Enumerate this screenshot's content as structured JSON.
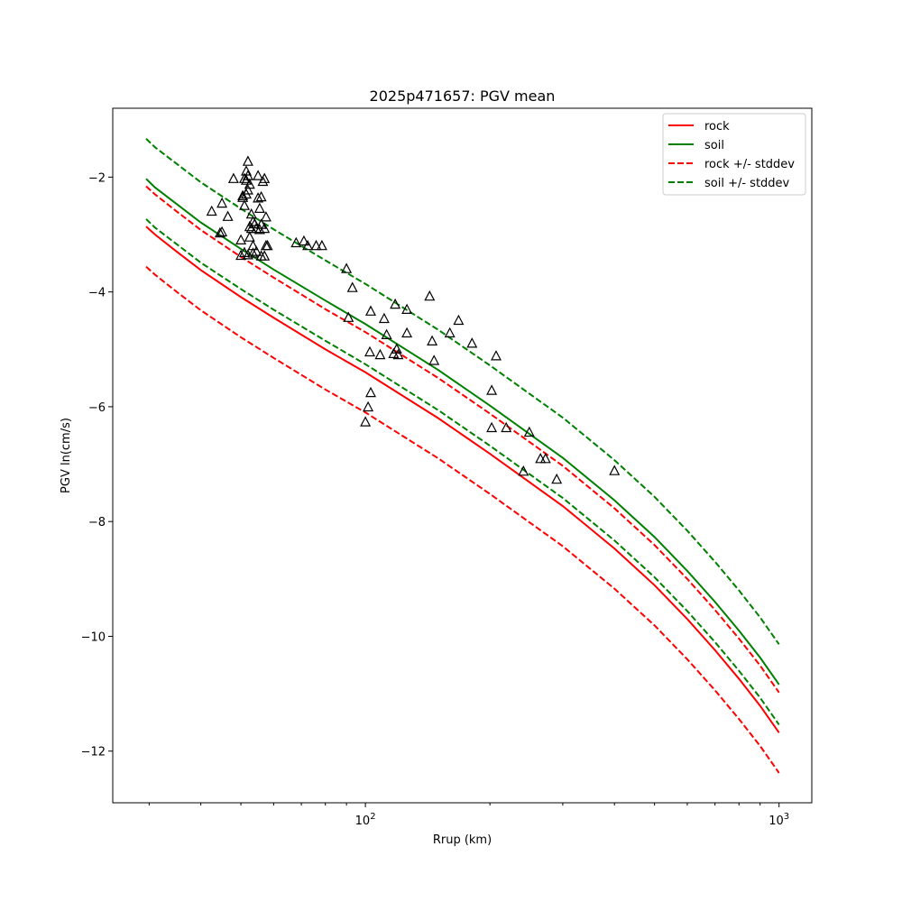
{
  "chart_data": {
    "type": "line",
    "title": "2025p471657: PGV mean",
    "xlabel": "Rrup (km)",
    "ylabel": "PGV ln(cm/s)",
    "xscale": "log",
    "xlim": [
      24.5,
      1200
    ],
    "ylim": [
      -12.9,
      -0.8
    ],
    "xticks": [
      {
        "value": 100,
        "label": "10^2"
      },
      {
        "value": 1000,
        "label": "10^3"
      }
    ],
    "yticks": [
      -2,
      -4,
      -6,
      -8,
      -10,
      -12
    ],
    "grid": false,
    "legend_position": "top-right",
    "colors": {
      "rock": "#ff0000",
      "soil": "#008000",
      "points": "#000000"
    },
    "series": [
      {
        "name": "rock",
        "style": "solid",
        "color": "#ff0000",
        "x": [
          29.5,
          31,
          35,
          40,
          50,
          60,
          80,
          100,
          150,
          200,
          300,
          400,
          500,
          600,
          700,
          800,
          900,
          1000
        ],
        "y": [
          -2.86,
          -3.0,
          -3.3,
          -3.62,
          -4.09,
          -4.45,
          -5.0,
          -5.4,
          -6.2,
          -6.82,
          -7.73,
          -8.47,
          -9.11,
          -9.7,
          -10.24,
          -10.74,
          -11.21,
          -11.68
        ]
      },
      {
        "name": "soil",
        "style": "solid",
        "color": "#008000",
        "x": [
          29.5,
          31,
          35,
          40,
          50,
          60,
          80,
          100,
          150,
          200,
          300,
          400,
          500,
          600,
          700,
          800,
          900,
          1000
        ],
        "y": [
          -2.03,
          -2.18,
          -2.47,
          -2.79,
          -3.25,
          -3.61,
          -4.15,
          -4.56,
          -5.36,
          -5.98,
          -6.89,
          -7.63,
          -8.27,
          -8.86,
          -9.4,
          -9.9,
          -10.37,
          -10.84
        ]
      },
      {
        "name": "rock +/- stddev",
        "style": "dashed",
        "color": "#ff0000",
        "x": [
          29.5,
          31,
          35,
          40,
          50,
          60,
          80,
          100,
          150,
          200,
          300,
          400,
          500,
          600,
          700,
          800,
          900,
          1000
        ],
        "y": [
          -2.16,
          -2.3,
          -2.6,
          -2.92,
          -3.39,
          -3.75,
          -4.3,
          -4.7,
          -5.5,
          -6.12,
          -7.03,
          -7.77,
          -8.41,
          -9.0,
          -9.54,
          -10.04,
          -10.51,
          -10.98
        ]
      },
      {
        "name": "",
        "style": "dashed",
        "color": "#ff0000",
        "x": [
          29.5,
          31,
          35,
          40,
          50,
          60,
          80,
          100,
          150,
          200,
          300,
          400,
          500,
          600,
          700,
          800,
          900,
          1000
        ],
        "y": [
          -3.56,
          -3.7,
          -4.0,
          -4.32,
          -4.79,
          -5.15,
          -5.7,
          -6.1,
          -6.9,
          -7.52,
          -8.43,
          -9.17,
          -9.81,
          -10.4,
          -10.94,
          -11.44,
          -11.91,
          -12.38
        ]
      },
      {
        "name": "soil +/- stddev",
        "style": "dashed",
        "color": "#008000",
        "x": [
          29.5,
          31,
          35,
          40,
          50,
          60,
          80,
          100,
          150,
          200,
          300,
          400,
          500,
          600,
          700,
          800,
          900,
          1000
        ],
        "y": [
          -1.33,
          -1.48,
          -1.77,
          -2.09,
          -2.55,
          -2.91,
          -3.45,
          -3.86,
          -4.66,
          -5.28,
          -6.19,
          -6.93,
          -7.57,
          -8.16,
          -8.7,
          -9.2,
          -9.67,
          -10.14
        ]
      },
      {
        "name": "",
        "style": "dashed",
        "color": "#008000",
        "x": [
          29.5,
          31,
          35,
          40,
          50,
          60,
          80,
          100,
          150,
          200,
          300,
          400,
          500,
          600,
          700,
          800,
          900,
          1000
        ],
        "y": [
          -2.73,
          -2.88,
          -3.17,
          -3.49,
          -3.95,
          -4.31,
          -4.85,
          -5.26,
          -6.06,
          -6.68,
          -7.59,
          -8.33,
          -8.97,
          -9.56,
          -10.1,
          -10.6,
          -11.07,
          -11.54
        ]
      }
    ],
    "points": {
      "marker": "triangle-open",
      "color": "#000000",
      "x": [
        52.0,
        51.5,
        52.0,
        52.5,
        51.0,
        51.5,
        48.0,
        55.0,
        56.5,
        57.0,
        52.0,
        51.5,
        50.5,
        56.0,
        50.5,
        51.0,
        55.0,
        45.0,
        42.5,
        55.5,
        46.5,
        53.0,
        57.5,
        53.5,
        56.0,
        54.0,
        52.5,
        54.5,
        55.5,
        53.0,
        57.0,
        45.0,
        44.5,
        52.5,
        50.0,
        53.5,
        57.5,
        58.0,
        54.5,
        51.0,
        53.5,
        52.0,
        50.0,
        56.0,
        57.0,
        68.0,
        71.0,
        72.5,
        76.0,
        78.5,
        90.0,
        93.0,
        91.0,
        143.0,
        103.0,
        111.0,
        118.0,
        126.0,
        112.5,
        126.0,
        145.0,
        160.0,
        168.0,
        181.0,
        102.5,
        108.5,
        117.0,
        119.0,
        120.0,
        146.5,
        207.0,
        103.0,
        101.5,
        100.0,
        202.0,
        202.0,
        219.0,
        249.0,
        241.0,
        265.0,
        272.5,
        290.0,
        400.0
      ],
      "y": [
        -1.73,
        -1.9,
        -1.98,
        -2.13,
        -2.03,
        -2.06,
        -2.03,
        -1.98,
        -2.08,
        -2.03,
        -2.23,
        -2.3,
        -2.33,
        -2.35,
        -2.36,
        -2.5,
        -2.37,
        -2.46,
        -2.6,
        -2.55,
        -2.69,
        -2.65,
        -2.7,
        -2.78,
        -2.83,
        -2.82,
        -2.87,
        -2.9,
        -2.92,
        -2.9,
        -2.9,
        -2.96,
        -2.98,
        -3.05,
        -3.1,
        -3.2,
        -3.2,
        -3.2,
        -3.3,
        -3.32,
        -3.33,
        -3.36,
        -3.37,
        -3.38,
        -3.38,
        -3.15,
        -3.12,
        -3.2,
        -3.2,
        -3.2,
        -3.6,
        -3.93,
        -4.45,
        -4.08,
        -4.34,
        -4.47,
        -4.22,
        -4.31,
        -4.75,
        -4.72,
        -4.86,
        -4.72,
        -4.5,
        -4.9,
        -5.05,
        -5.1,
        -5.08,
        -5.0,
        -5.1,
        -5.2,
        -5.12,
        -5.76,
        -6.01,
        -6.27,
        -5.72,
        -6.37,
        -6.37,
        -6.45,
        -7.13,
        -6.91,
        -6.91,
        -7.27,
        -7.12
      ]
    }
  }
}
